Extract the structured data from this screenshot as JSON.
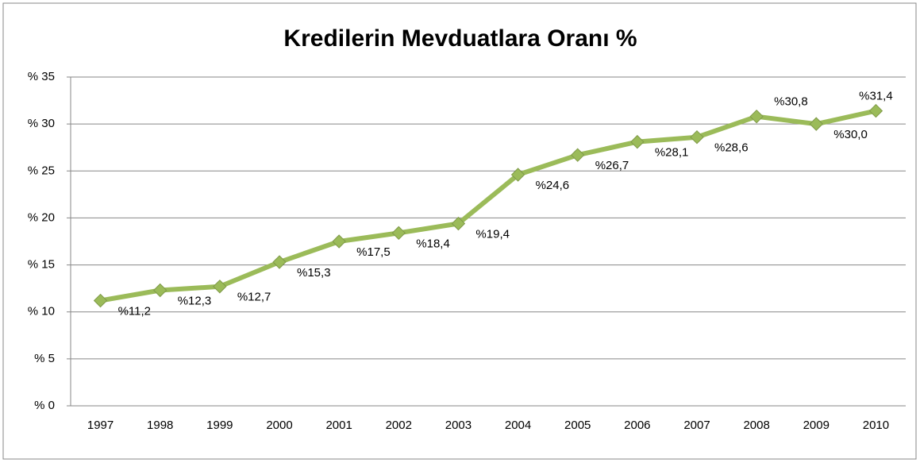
{
  "chart_data": {
    "type": "line",
    "title": "Kredilerin Mevduatlara Oranı %",
    "categories": [
      "1997",
      "1998",
      "1999",
      "2000",
      "2001",
      "2002",
      "2003",
      "2004",
      "2005",
      "2006",
      "2007",
      "2008",
      "2009",
      "2010"
    ],
    "series": [
      {
        "name": "Kredilerin Mevduatlara Oranı",
        "color": "#9bbb59",
        "values": [
          11.2,
          12.3,
          12.7,
          15.3,
          17.5,
          18.4,
          19.4,
          24.6,
          26.7,
          28.1,
          28.6,
          30.8,
          30.0,
          31.4
        ],
        "value_labels": [
          "%11,2",
          "%12,3",
          "%12,7",
          "%15,3",
          "%17,5",
          "%18,4",
          "%19,4",
          "%24,6",
          "%26,7",
          "%28,1",
          "%28,6",
          "%30,8",
          "%30,0",
          "%31,4"
        ]
      }
    ],
    "ylim": [
      0,
      35
    ],
    "yticks": [
      {
        "value": 0,
        "label": "% 0"
      },
      {
        "value": 5,
        "label": "% 5"
      },
      {
        "value": 10,
        "label": "% 10"
      },
      {
        "value": 15,
        "label": "% 15"
      },
      {
        "value": 20,
        "label": "% 20"
      },
      {
        "value": 25,
        "label": "% 25"
      },
      {
        "value": 30,
        "label": "% 30"
      },
      {
        "value": 35,
        "label": "% 35"
      }
    ],
    "grid": true
  }
}
